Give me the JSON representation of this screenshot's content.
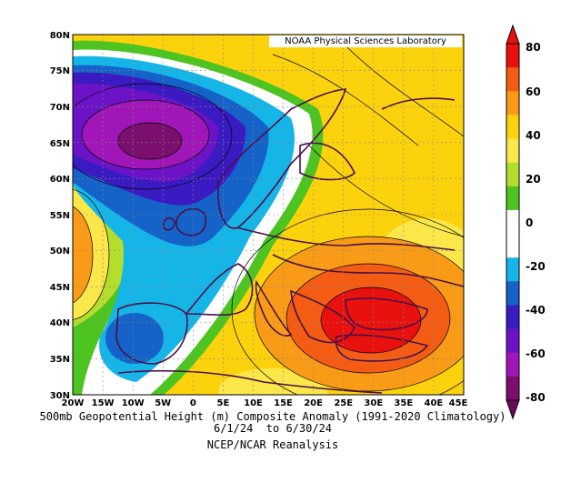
{
  "map": {
    "credit": "NOAA Physical Sciences Laboratory",
    "lat_labels": [
      "80N",
      "75N",
      "70N",
      "65N",
      "60N",
      "55N",
      "50N",
      "45N",
      "40N",
      "35N",
      "30N"
    ],
    "lon_labels": [
      "20W",
      "15W",
      "10W",
      "5W",
      "0",
      "5E",
      "10E",
      "15E",
      "20E",
      "25E",
      "30E",
      "35E",
      "40E",
      "45E"
    ],
    "lat_range": [
      30,
      80
    ],
    "lon_range": [
      -20,
      45
    ]
  },
  "caption": {
    "line1": "500mb Geopotential Height (m) Composite Anomaly (1991-2020 Climatology)",
    "line2": "6/1/24  to 6/30/24",
    "line3": "NCEP/NCAR Reanalysis"
  },
  "colorbar": {
    "labels": [
      "80",
      "60",
      "40",
      "20",
      "0",
      "-20",
      "-40",
      "-60",
      "-80"
    ],
    "colors": [
      "#e8110d",
      "#f35c12",
      "#f99b16",
      "#fcd20c",
      "#fbe74a",
      "#b5dd2d",
      "#4ec420",
      "#ffffff",
      "#ffffff",
      "#16b5e8",
      "#1562c8",
      "#3a1bc2",
      "#6c13c8",
      "#a016b8",
      "#7a0f6e"
    ]
  },
  "legend_values": [
    80,
    60,
    40,
    20,
    0,
    -20,
    -40,
    -60,
    -80
  ]
}
